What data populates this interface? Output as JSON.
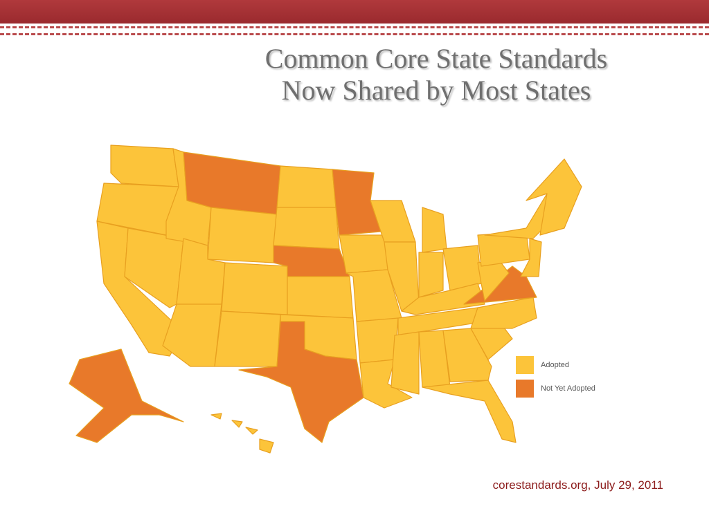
{
  "title_lines": [
    "Common Core State Standards",
    "Now Shared by Most States"
  ],
  "legend": [
    {
      "label": "Adopted",
      "color": "#fcc43a"
    },
    {
      "label": "Not Yet Adopted",
      "color": "#e8792a"
    }
  ],
  "source": "corestandards.org, July 29, 2011"
}
